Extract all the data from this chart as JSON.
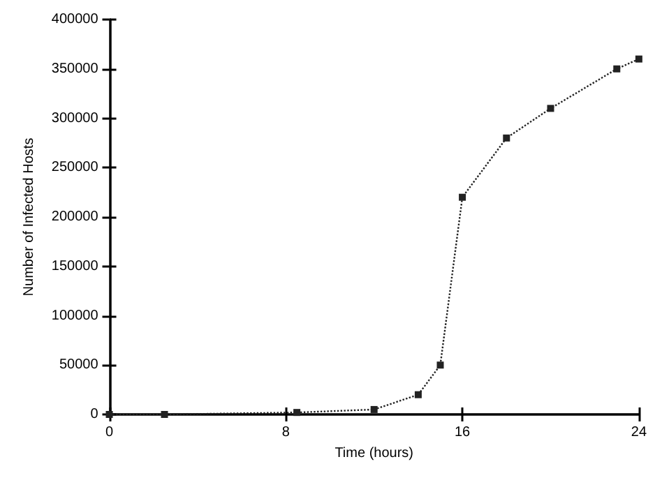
{
  "chart_data": {
    "type": "line",
    "xlabel": "Time (hours)",
    "ylabel": "Number of Infected Hosts",
    "x": [
      0,
      2.5,
      8.5,
      12,
      14,
      15,
      16,
      18,
      20,
      23,
      24
    ],
    "values": [
      0,
      0,
      2000,
      5000,
      20000,
      50000,
      220000,
      280000,
      310000,
      350000,
      360000
    ],
    "color": "#222222",
    "marker": "square",
    "line_style": "dotted",
    "grid": false,
    "xlim": [
      0,
      24
    ],
    "xticks": [
      0,
      8,
      16,
      24
    ],
    "ylim": [
      0,
      400000
    ],
    "yticks": [
      0,
      50000,
      100000,
      150000,
      200000,
      250000,
      300000,
      350000,
      400000
    ]
  }
}
